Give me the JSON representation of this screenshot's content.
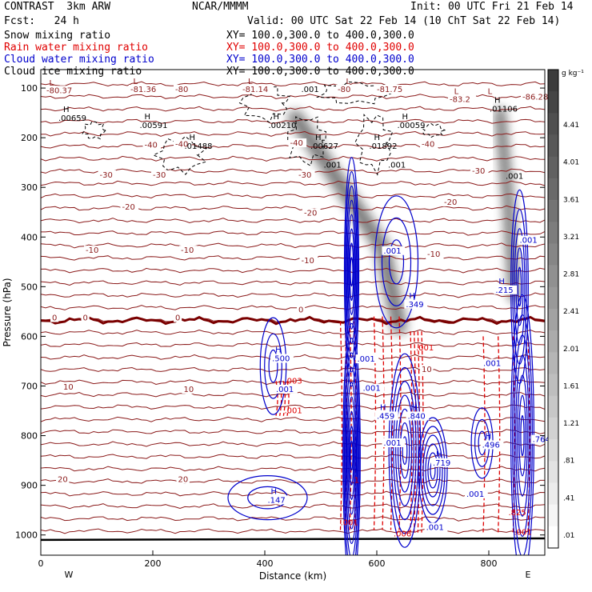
{
  "header": {
    "model": "CONTRAST  3km ARW",
    "center": "NCAR/MMMM",
    "init": "Init: 00 UTC Fri 21 Feb 14",
    "fcst": "Fcst:   24 h",
    "valid": "Valid: 00 UTC Sat 22 Feb 14 (10 ChT Sat 22 Feb 14)"
  },
  "fields": [
    {
      "name": "Snow mixing ratio",
      "xy": "XY= 100.0,300.0 to 400.0,300.0",
      "color": "#000000"
    },
    {
      "name": "Rain water mixing ratio",
      "xy": "XY= 100.0,300.0 to 400.0,300.0",
      "color": "#e00000"
    },
    {
      "name": "Cloud water mixing ratio",
      "xy": "XY= 100.0,300.0 to 400.0,300.0",
      "color": "#0000cc"
    },
    {
      "name": "Cloud ice mixing ratio",
      "xy": "XY= 100.0,300.0 to 400.0,300.0",
      "color": "#000000"
    }
  ],
  "colors": {
    "temperature": "#8b1a1a",
    "zero_isotherm": "#7a0000",
    "rain": "#e00000",
    "cloud_water": "#0000cc",
    "ice": "#000000"
  },
  "chart_data": {
    "type": "contour",
    "xlabel": "Distance (km)",
    "ylabel": "Pressure (hPa)",
    "xlim": [
      0,
      900
    ],
    "ylim": [
      1050,
      50
    ],
    "x_ticks": [
      "0",
      "200",
      "400",
      "600",
      "800"
    ],
    "y_ticks": [
      "100",
      "200",
      "300",
      "400",
      "500",
      "600",
      "700",
      "800",
      "900",
      "1000"
    ],
    "x_end_labels": {
      "left": "W",
      "right": "E"
    },
    "colorbar": {
      "unit": "g kg⁻¹",
      "levels": [
        "4.41",
        "4.01",
        "3.61",
        "3.21",
        "2.81",
        "2.41",
        "2.01",
        "1.61",
        "1.21",
        ".81",
        ".41",
        ".01"
      ]
    },
    "temperature_contours_C": [
      {
        "x": 10,
        "p": 110,
        "t": "-80.37"
      },
      {
        "x": 160,
        "p": 108,
        "t": "-81.36"
      },
      {
        "x": 240,
        "p": 108,
        "t": "-80"
      },
      {
        "x": 360,
        "p": 108,
        "t": "-81.14"
      },
      {
        "x": 530,
        "p": 108,
        "t": "-80"
      },
      {
        "x": 600,
        "p": 108,
        "t": "-81.75"
      },
      {
        "x": 730,
        "p": 128,
        "t": "-83.2"
      },
      {
        "x": 860,
        "p": 123,
        "t": "-86.28"
      },
      {
        "x": 185,
        "p": 220,
        "t": "-40"
      },
      {
        "x": 240,
        "p": 218,
        "t": "-40"
      },
      {
        "x": 445,
        "p": 216,
        "t": "-40"
      },
      {
        "x": 680,
        "p": 218,
        "t": "-40"
      },
      {
        "x": 105,
        "p": 280,
        "t": "-30"
      },
      {
        "x": 200,
        "p": 280,
        "t": "-30"
      },
      {
        "x": 460,
        "p": 280,
        "t": "-30"
      },
      {
        "x": 770,
        "p": 272,
        "t": "-30"
      },
      {
        "x": 145,
        "p": 345,
        "t": "-20"
      },
      {
        "x": 470,
        "p": 357,
        "t": "-20"
      },
      {
        "x": 720,
        "p": 335,
        "t": "-20"
      },
      {
        "x": 80,
        "p": 432,
        "t": "-10"
      },
      {
        "x": 250,
        "p": 432,
        "t": "-10"
      },
      {
        "x": 465,
        "p": 453,
        "t": "-10"
      },
      {
        "x": 690,
        "p": 440,
        "t": "-10"
      },
      {
        "x": 20,
        "p": 568,
        "t": "0"
      },
      {
        "x": 75,
        "p": 568,
        "t": "0"
      },
      {
        "x": 240,
        "p": 568,
        "t": "0"
      },
      {
        "x": 460,
        "p": 552,
        "t": "0"
      },
      {
        "x": 40,
        "p": 707,
        "t": "10"
      },
      {
        "x": 255,
        "p": 712,
        "t": "10"
      },
      {
        "x": 680,
        "p": 672,
        "t": "10"
      },
      {
        "x": 30,
        "p": 893,
        "t": "20"
      },
      {
        "x": 245,
        "p": 893,
        "t": "20"
      }
    ],
    "extrema": [
      {
        "x": 15,
        "p": 95,
        "kind": "L"
      },
      {
        "x": 165,
        "p": 92,
        "kind": "L"
      },
      {
        "x": 370,
        "p": 92,
        "kind": "L"
      },
      {
        "x": 545,
        "p": 92,
        "kind": "L"
      },
      {
        "x": 738,
        "p": 112,
        "kind": "L"
      },
      {
        "x": 798,
        "p": 112,
        "kind": "L"
      },
      {
        "x": 40,
        "p": 148,
        "kind": "H",
        "value": ".00659"
      },
      {
        "x": 185,
        "p": 163,
        "kind": "H",
        "value": ".00591"
      },
      {
        "x": 265,
        "p": 205,
        "kind": "H",
        "value": ".01488"
      },
      {
        "x": 415,
        "p": 163,
        "kind": "H",
        "value": ".00210"
      },
      {
        "x": 490,
        "p": 205,
        "kind": "H",
        "value": ".00627"
      },
      {
        "x": 595,
        "p": 205,
        "kind": "H",
        "value": ".01892"
      },
      {
        "x": 645,
        "p": 163,
        "kind": "H",
        "value": ".00059"
      },
      {
        "x": 810,
        "p": 130,
        "kind": "H",
        "value": ".01106"
      }
    ],
    "ice_labels": [
      {
        "x": 465,
        "p": 108,
        "t": ".001"
      },
      {
        "x": 505,
        "p": 260,
        "t": ".001"
      },
      {
        "x": 620,
        "p": 260,
        "t": ".001"
      },
      {
        "x": 830,
        "p": 283,
        "t": ".001"
      }
    ],
    "snow_plumes": [
      {
        "x": [
          455,
          610,
          640
        ],
        "p": [
          160,
          420,
          580
        ],
        "w": 70
      },
      {
        "x": [
          820,
          835,
          845
        ],
        "p": [
          150,
          330,
          520
        ],
        "w": 50
      }
    ],
    "rain_labels": [
      {
        "x": 555,
        "p": 895,
        "t": ".1"
      },
      {
        "x": 435,
        "p": 695,
        "t": ".003"
      },
      {
        "x": 435,
        "p": 755,
        "t": ".001"
      },
      {
        "x": 535,
        "p": 980,
        "t": ".001"
      },
      {
        "x": 630,
        "p": 1003,
        "t": ".006"
      },
      {
        "x": 835,
        "p": 960,
        "t": ".825"
      },
      {
        "x": 845,
        "p": 1000,
        "t": ".001"
      },
      {
        "x": 670,
        "p": 628,
        "t": ".001"
      }
    ],
    "cloud_water_max": [
      {
        "x": 413,
        "p": 650,
        "t": ".500",
        "h": true
      },
      {
        "x": 420,
        "p": 712,
        "t": ".001",
        "h": false
      },
      {
        "x": 565,
        "p": 651,
        "t": ".001",
        "h": false
      },
      {
        "x": 575,
        "p": 710,
        "t": ".001",
        "h": false
      },
      {
        "x": 600,
        "p": 766,
        "t": ".459",
        "h": true
      },
      {
        "x": 655,
        "p": 766,
        "t": ".840",
        "h": true
      },
      {
        "x": 612,
        "p": 820,
        "t": ".001",
        "h": false
      },
      {
        "x": 700,
        "p": 860,
        "t": ".719",
        "h": true
      },
      {
        "x": 612,
        "p": 433,
        "t": ".001",
        "h": false
      },
      {
        "x": 652,
        "p": 541,
        "t": ".349",
        "h": true
      },
      {
        "x": 812,
        "p": 512,
        "t": ".215",
        "h": true
      },
      {
        "x": 855,
        "p": 412,
        "t": ".001",
        "h": false
      },
      {
        "x": 788,
        "p": 824,
        "t": ".496",
        "h": true
      },
      {
        "x": 878,
        "p": 813,
        "t": ".764",
        "h": false
      },
      {
        "x": 790,
        "p": 660,
        "t": ".001",
        "h": false
      },
      {
        "x": 760,
        "p": 923,
        "t": ".001",
        "h": false
      },
      {
        "x": 688,
        "p": 990,
        "t": ".001",
        "h": false
      },
      {
        "x": 405,
        "p": 935,
        "t": ".147",
        "h": true
      }
    ]
  }
}
